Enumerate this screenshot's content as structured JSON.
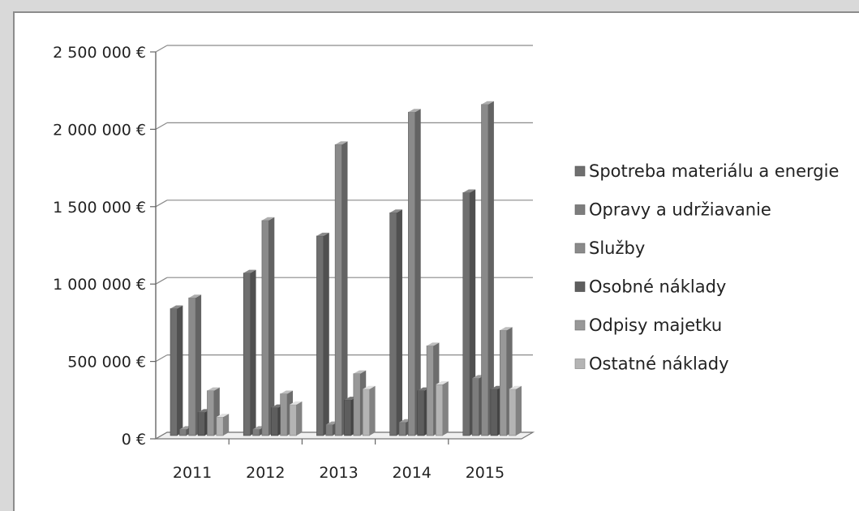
{
  "chart_data": {
    "type": "bar",
    "style": "3d-clustered-column",
    "categories": [
      "2011",
      "2012",
      "2013",
      "2014",
      "2015"
    ],
    "y_ticks": [
      "0 €",
      "500 000 €",
      "1 000 000 €",
      "1 500 000 €",
      "2 000 000 €",
      "2 500 000 €"
    ],
    "ylim": [
      0,
      2500000
    ],
    "grid": true,
    "legend_position": "right",
    "series": [
      {
        "name": "Spotreba materiálu a energie",
        "color": "#6f6f6f",
        "values": [
          820000,
          1050000,
          1290000,
          1440000,
          1570000
        ]
      },
      {
        "name": "Opravy a udržiavanie",
        "color": "#7d7d7d",
        "values": [
          40000,
          40000,
          70000,
          85000,
          370000
        ]
      },
      {
        "name": "Služby",
        "color": "#8a8a8a",
        "values": [
          890000,
          1390000,
          1880000,
          2090000,
          2140000
        ]
      },
      {
        "name": "Osobné náklady",
        "color": "#5e5e5e",
        "values": [
          150000,
          180000,
          230000,
          290000,
          300000
        ]
      },
      {
        "name": "Odpisy majetku",
        "color": "#989898",
        "values": [
          290000,
          270000,
          400000,
          580000,
          680000
        ]
      },
      {
        "name": "Ostatné náklady",
        "color": "#b4b4b4",
        "values": [
          120000,
          200000,
          300000,
          330000,
          300000
        ]
      }
    ]
  }
}
